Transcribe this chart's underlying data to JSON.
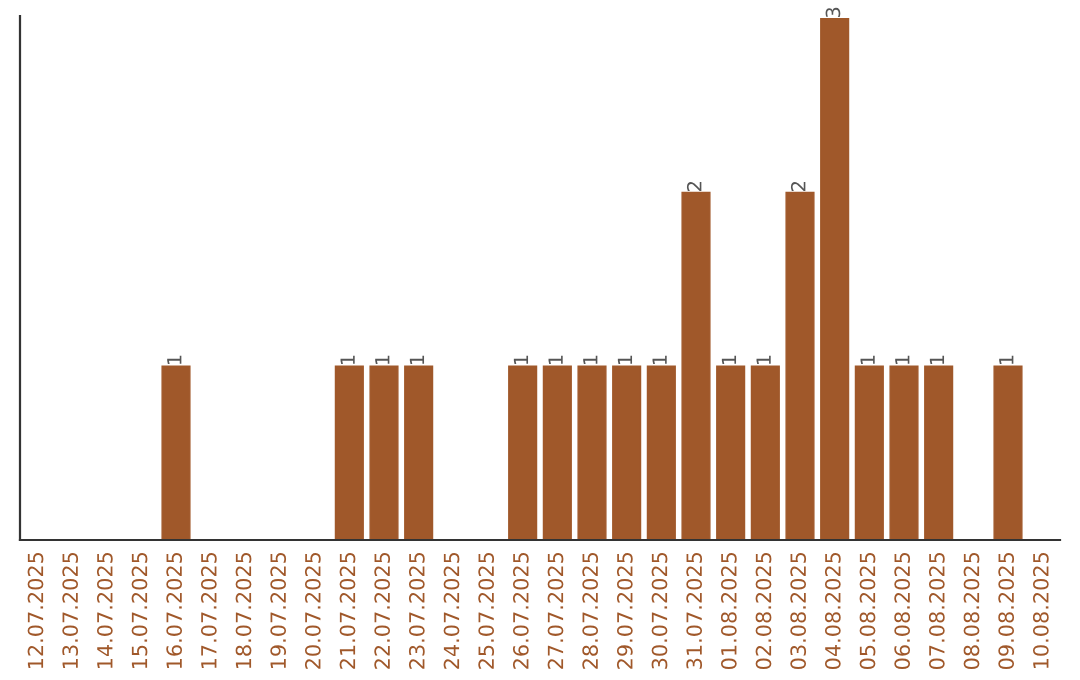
{
  "chart_data": {
    "type": "bar",
    "categories": [
      "12.07.2025",
      "13.07.2025",
      "14.07.2025",
      "15.07.2025",
      "16.07.2025",
      "17.07.2025",
      "18.07.2025",
      "19.07.2025",
      "20.07.2025",
      "21.07.2025",
      "22.07.2025",
      "23.07.2025",
      "24.07.2025",
      "25.07.2025",
      "26.07.2025",
      "27.07.2025",
      "28.07.2025",
      "29.07.2025",
      "30.07.2025",
      "31.07.2025",
      "01.08.2025",
      "02.08.2025",
      "03.08.2025",
      "04.08.2025",
      "05.08.2025",
      "06.08.2025",
      "07.08.2025",
      "08.08.2025",
      "09.08.2025",
      "10.08.2025"
    ],
    "values": [
      0,
      0,
      0,
      0,
      1,
      0,
      0,
      0,
      0,
      1,
      1,
      1,
      0,
      0,
      1,
      1,
      1,
      1,
      1,
      2,
      1,
      1,
      2,
      3,
      1,
      1,
      1,
      0,
      1,
      0
    ],
    "value_labels": [
      null,
      null,
      null,
      null,
      "1",
      null,
      null,
      null,
      null,
      "1",
      "1",
      "1",
      null,
      null,
      "1",
      "1",
      "1",
      "1",
      "1",
      "2",
      "1",
      "1",
      "2",
      "3",
      "1",
      "1",
      "1",
      null,
      "1",
      null
    ],
    "color": "#a0582a",
    "grid": false,
    "legend": false
  }
}
